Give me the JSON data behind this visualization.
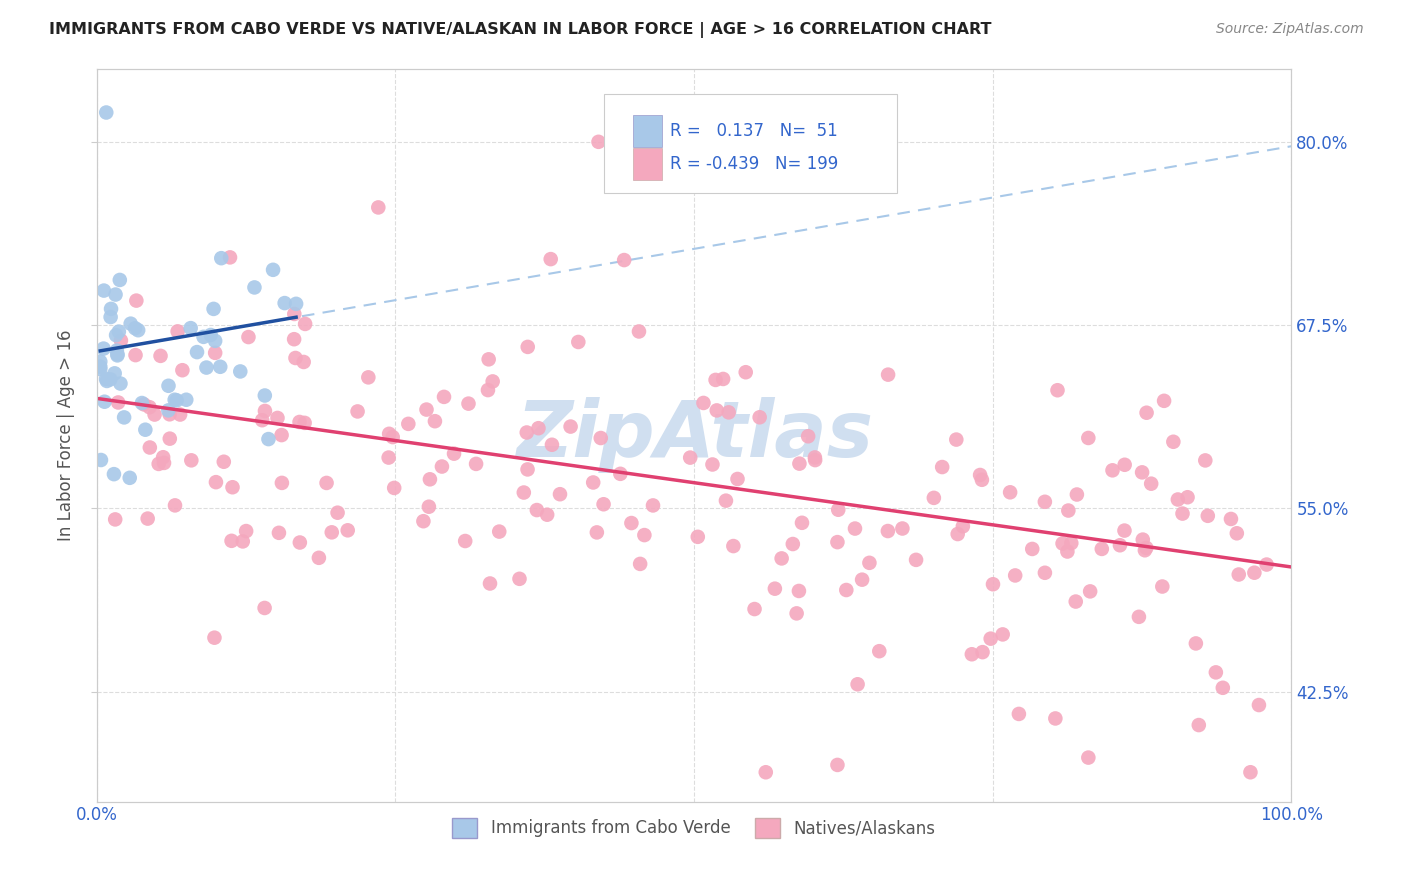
{
  "title": "IMMIGRANTS FROM CABO VERDE VS NATIVE/ALASKAN IN LABOR FORCE | AGE > 16 CORRELATION CHART",
  "source": "Source: ZipAtlas.com",
  "ylabel": "In Labor Force | Age > 16",
  "xlim": [
    0.0,
    1.0
  ],
  "ylim": [
    0.35,
    0.85
  ],
  "yticks": [
    0.425,
    0.55,
    0.675,
    0.8
  ],
  "ytick_labels": [
    "42.5%",
    "55.0%",
    "67.5%",
    "80.0%"
  ],
  "r_blue": 0.137,
  "n_blue": 51,
  "r_pink": -0.439,
  "n_pink": 199,
  "blue_color": "#a8c8e8",
  "pink_color": "#f4a8be",
  "blue_line_color": "#2050a0",
  "pink_line_color": "#e04070",
  "blue_dash_color": "#a8c8e8",
  "watermark_text": "ZipAtlas",
  "watermark_color": "#d0dff0",
  "legend_box_color": "#ffffff",
  "legend_text_color": "#3366cc",
  "title_color": "#222222",
  "source_color": "#888888",
  "ylabel_color": "#555555",
  "tick_label_color": "#3366cc",
  "grid_color": "#dddddd",
  "spine_color": "#cccccc",
  "bottom_legend_text_color": "#555555"
}
